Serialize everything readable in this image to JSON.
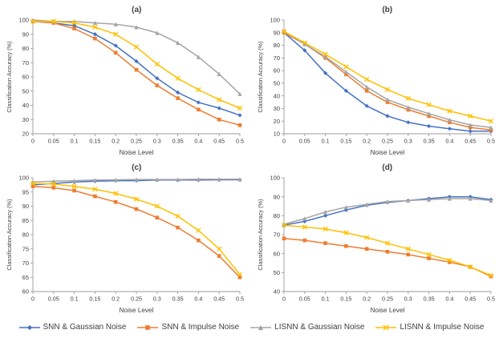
{
  "figure": {
    "xlabel": "Noise Level",
    "ylabel": "Classification Accuracy (%)"
  },
  "series_styles": [
    {
      "name": "SNN & Gaussian Noise",
      "color": "#4472C4",
      "marker": "diamond"
    },
    {
      "name": "SNN & Impulse Noise",
      "color": "#ED7D31",
      "marker": "square"
    },
    {
      "name": "LISNN & Gaussian Noise",
      "color": "#A5A5A5",
      "marker": "triangle"
    },
    {
      "name": "LISNN & Impulse Noise",
      "color": "#FFC000",
      "marker": "x"
    }
  ],
  "chart_data": [
    {
      "type": "line",
      "title": "(a)",
      "xlabel": "Noise Level",
      "ylabel": "Classification Accuracy (%)",
      "x": [
        0,
        0.05,
        0.1,
        0.15,
        0.2,
        0.25,
        0.3,
        0.35,
        0.4,
        0.45,
        0.5
      ],
      "ylim": [
        20,
        100
      ],
      "ystep": 10,
      "series": [
        {
          "name": "SNN & Gaussian Noise",
          "values": [
            99,
            98,
            96,
            90,
            82,
            71,
            59,
            49,
            42,
            38,
            33
          ]
        },
        {
          "name": "SNN & Impulse Noise",
          "values": [
            99,
            98,
            94,
            87,
            77,
            65,
            54,
            45,
            37,
            30,
            26
          ]
        },
        {
          "name": "LISNN & Gaussian Noise",
          "values": [
            100,
            99,
            99,
            98,
            97,
            95,
            91,
            84,
            74,
            62,
            48
          ]
        },
        {
          "name": "LISNN & Impulse Noise",
          "values": [
            99,
            99,
            98,
            95,
            90,
            81,
            69,
            59,
            51,
            44,
            38
          ]
        }
      ]
    },
    {
      "type": "line",
      "title": "(b)",
      "xlabel": "Noise Level",
      "ylabel": "Classification Accuracy (%)",
      "x": [
        0,
        0.05,
        0.1,
        0.15,
        0.2,
        0.25,
        0.3,
        0.35,
        0.4,
        0.45,
        0.5
      ],
      "ylim": [
        10,
        100
      ],
      "ystep": 10,
      "series": [
        {
          "name": "SNN & Gaussian Noise",
          "values": [
            90,
            76,
            58,
            44,
            32,
            24,
            19,
            16,
            14,
            12,
            12
          ]
        },
        {
          "name": "SNN & Impulse Noise",
          "values": [
            90,
            81,
            70,
            57,
            44,
            35,
            29,
            24,
            19,
            15,
            13
          ]
        },
        {
          "name": "LISNN & Gaussian Noise",
          "values": [
            91,
            81,
            71,
            59,
            47,
            37,
            31,
            26,
            21,
            17,
            15
          ]
        },
        {
          "name": "LISNN & Impulse Noise",
          "values": [
            91,
            82,
            73,
            63,
            53,
            45,
            38,
            33,
            28,
            24,
            20
          ]
        }
      ]
    },
    {
      "type": "line",
      "title": "(c)",
      "xlabel": "Noise Level",
      "ylabel": "Classification Accuracy (%)",
      "x": [
        0,
        0.05,
        0.1,
        0.15,
        0.2,
        0.25,
        0.3,
        0.35,
        0.4,
        0.45,
        0.5
      ],
      "ylim": [
        60,
        100
      ],
      "ystep": 5,
      "series": [
        {
          "name": "SNN & Gaussian Noise",
          "values": [
            97.5,
            98,
            98.5,
            98.8,
            99,
            99,
            99.2,
            99.2,
            99.2,
            99.3,
            99.3
          ]
        },
        {
          "name": "SNN & Impulse Noise",
          "values": [
            97,
            96.5,
            95.5,
            93.5,
            91.5,
            89,
            86,
            82.5,
            78,
            72.5,
            65
          ]
        },
        {
          "name": "LISNN & Gaussian Noise",
          "values": [
            98.5,
            98.8,
            99,
            99.2,
            99.3,
            99.4,
            99.4,
            99.4,
            99.5,
            99.5,
            99.5
          ]
        },
        {
          "name": "LISNN & Impulse Noise",
          "values": [
            98,
            97.8,
            97,
            96,
            94.5,
            92.5,
            90,
            86.5,
            81.5,
            75,
            66
          ]
        }
      ]
    },
    {
      "type": "line",
      "title": "(d)",
      "xlabel": "Noise Level",
      "ylabel": "Classification Accuracy (%)",
      "x": [
        0,
        0.05,
        0.1,
        0.15,
        0.2,
        0.25,
        0.3,
        0.35,
        0.4,
        0.45,
        0.5
      ],
      "ylim": [
        40,
        100
      ],
      "ystep": 10,
      "series": [
        {
          "name": "SNN & Gaussian Noise",
          "values": [
            75,
            77,
            80,
            83,
            85.5,
            87,
            88,
            89,
            90,
            90,
            88.5
          ]
        },
        {
          "name": "SNN & Impulse Noise",
          "values": [
            68,
            67,
            65.5,
            64,
            62.5,
            61,
            59.5,
            57.5,
            55.5,
            53,
            48
          ]
        },
        {
          "name": "LISNN & Gaussian Noise",
          "values": [
            75.5,
            78.5,
            82,
            84.5,
            86,
            87.5,
            88,
            88.5,
            89,
            89,
            88
          ]
        },
        {
          "name": "LISNN & Impulse Noise",
          "values": [
            75,
            74,
            73,
            71,
            68.5,
            65.5,
            62.5,
            59.5,
            56.5,
            53,
            48.5
          ]
        }
      ]
    }
  ]
}
